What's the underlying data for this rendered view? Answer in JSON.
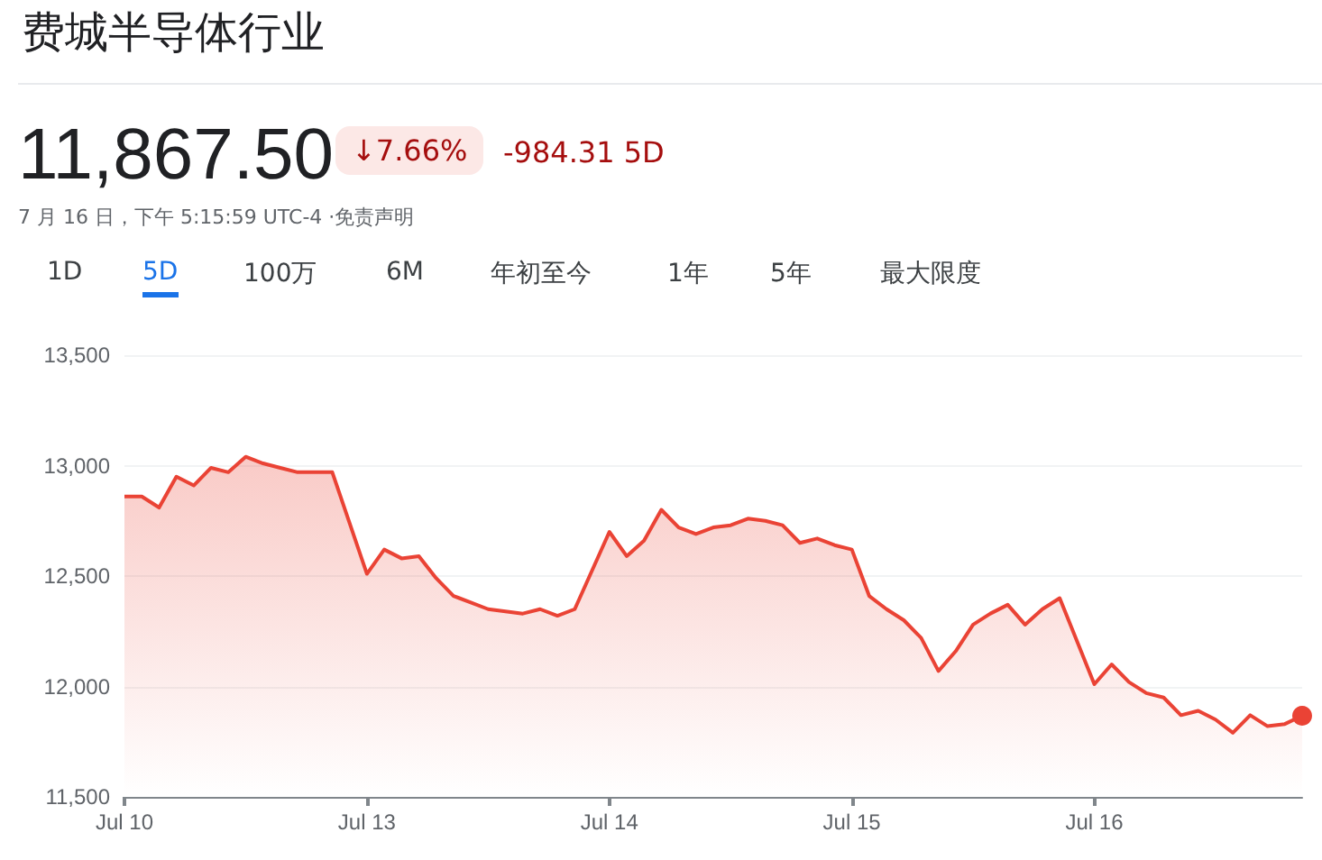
{
  "chart_data": {
    "type": "area",
    "title": "费城半导体行业",
    "annotations": [
      "11,867.50",
      "↓7.66%",
      "-984.31 5D",
      "7 月 16 日，下午 5:15:59 UTC-4 ·免责声明",
      "1D",
      "5D",
      "100万",
      "6M",
      "年初至今",
      "1年",
      "5年",
      "最大限度"
    ],
    "categories": [
      "Jul 10",
      null,
      null,
      null,
      null,
      null,
      null,
      null,
      null,
      null,
      null,
      null,
      null,
      null,
      "Jul 13",
      null,
      null,
      null,
      null,
      null,
      null,
      null,
      null,
      null,
      null,
      null,
      null,
      null,
      "Jul 14",
      null,
      null,
      null,
      null,
      null,
      null,
      null,
      null,
      null,
      null,
      null,
      null,
      null,
      "Jul 15",
      null,
      null,
      null,
      null,
      null,
      null,
      null,
      null,
      null,
      null,
      null,
      null,
      null,
      "Jul 16",
      null,
      null,
      null,
      null,
      null,
      null,
      null,
      null,
      null,
      null,
      null,
      null
    ],
    "series": [
      {
        "color": "#ea4335",
        "values": [
          12860,
          12860,
          12810,
          12950,
          12910,
          12990,
          12970,
          13040,
          13010,
          12990,
          12970,
          null,
          12970,
          null,
          12510,
          12620,
          12580,
          12590,
          12490,
          12410,
          12380,
          12350,
          12340,
          12330,
          12350,
          12320,
          12350,
          null,
          12700,
          12590,
          12660,
          12800,
          12720,
          12690,
          12720,
          12730,
          12760,
          12750,
          12730,
          12650,
          12670,
          12640,
          12620,
          12410,
          12350,
          12300,
          12220,
          12070,
          12160,
          12280,
          12330,
          12370,
          12280,
          12350,
          12400,
          null,
          12010,
          12100,
          12020,
          11970,
          11950,
          11870,
          11890,
          11850,
          11790,
          11870,
          11820,
          11830,
          11867.5
        ]
      }
    ],
    "ylim": [
      11500,
      13500
    ],
    "yticks": [
      {
        "value": 11500,
        "label": "11,500"
      },
      {
        "value": 12000,
        "label": "12,000"
      },
      {
        "value": 12500,
        "label": "12,500"
      },
      {
        "value": 13000,
        "label": "13,000"
      },
      {
        "value": 13500,
        "label": "13,500"
      }
    ],
    "grid": "y"
  }
}
